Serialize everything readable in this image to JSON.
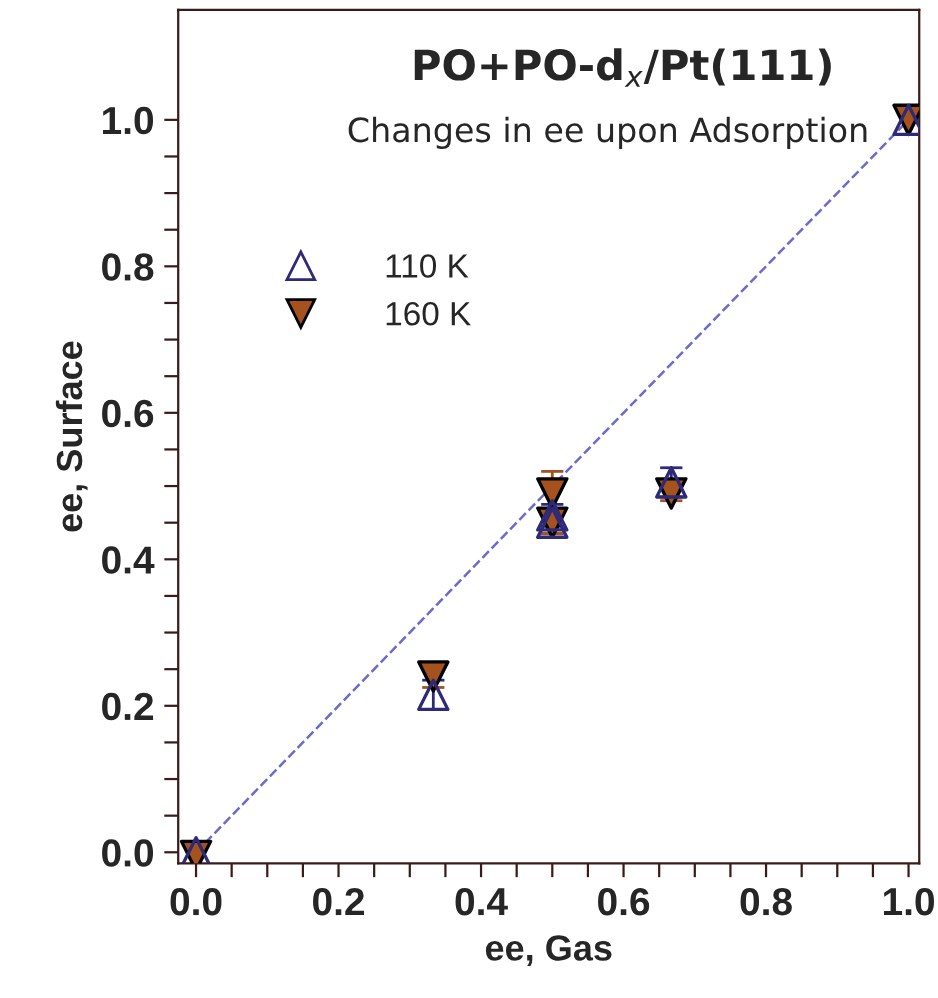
{
  "chart_data": {
    "type": "scatter",
    "title": "PO+PO-d$_{x}$/Pt(111)",
    "subtitle": "Changes in ee upon Adsorption",
    "xlabel": "ee, Gas",
    "ylabel": "ee, Surface",
    "series": [
      {
        "name": "110 K",
        "color": "#2e2a78",
        "marker": "triangle",
        "x": [
          0,
          0.333,
          0.5,
          0.5,
          0.667,
          1.0
        ],
        "values": [
          0.0,
          0.215,
          0.45,
          0.46,
          0.505,
          1.0
        ],
        "errors": [
          null,
          0.02,
          0.015,
          0.015,
          0.02,
          null
        ]
      },
      {
        "name": "160 K",
        "color": "#a5521f",
        "marker": "triangle_down",
        "x": [
          0,
          0.333,
          0.5,
          0.5,
          0.667,
          1.0
        ],
        "values": [
          -0.005,
          0.24,
          0.49,
          0.45,
          0.49,
          1.0
        ],
        "errors": [
          null,
          0.015,
          0.03,
          0.015,
          0.01,
          null
        ]
      },
      {
        "type": "line",
        "color": "#6a6ad0",
        "line_style": "dashed",
        "x": [
          0,
          1.0
        ],
        "values": [
          0,
          1.0
        ]
      }
    ],
    "xlim": [
      -0.025,
      1.015
    ],
    "ylim": [
      -0.015,
      1.15
    ],
    "xticks": [
      {
        "value": 0,
        "label": "0.0"
      },
      {
        "value": 0.05,
        "label": null
      },
      {
        "value": 0.1,
        "label": null
      },
      {
        "value": 0.15,
        "label": null
      },
      0.2,
      {
        "value": 0.25,
        "label": null
      },
      {
        "value": 0.3,
        "label": null
      },
      {
        "value": 0.35,
        "label": null
      },
      0.4,
      {
        "value": 0.45,
        "label": null
      },
      {
        "value": 0.5,
        "label": null
      },
      {
        "value": 0.55,
        "label": null
      },
      0.6,
      {
        "value": 0.65,
        "label": null
      },
      {
        "value": 0.7,
        "label": null
      },
      {
        "value": 0.75,
        "label": null
      },
      0.8,
      {
        "value": 0.85,
        "label": null
      },
      {
        "value": 0.9,
        "label": null
      },
      {
        "value": 0.95,
        "label": null
      },
      {
        "value": 1.0,
        "label": "1.0"
      }
    ],
    "yticks": [
      {
        "value": 0,
        "label": "0.0"
      },
      {
        "value": 0.05,
        "label": null
      },
      {
        "value": 0.1,
        "label": null
      },
      {
        "value": 0.15,
        "label": null
      },
      0.2,
      {
        "value": 0.25,
        "label": null
      },
      {
        "value": 0.3,
        "label": null
      },
      {
        "value": 0.35,
        "label": null
      },
      0.4,
      {
        "value": 0.45,
        "label": null
      },
      {
        "value": 0.5,
        "label": null
      },
      {
        "value": 0.55,
        "label": null
      },
      0.6,
      {
        "value": 0.65,
        "label": null
      },
      {
        "value": 0.7,
        "label": null
      },
      {
        "value": 0.75,
        "label": null
      },
      0.8,
      {
        "value": 0.85,
        "label": null
      },
      {
        "value": 0.9,
        "label": null
      },
      {
        "value": 0.95,
        "label": null
      },
      {
        "value": 1.0,
        "label": "1.0"
      }
    ],
    "grid": false,
    "legend": "top left"
  }
}
